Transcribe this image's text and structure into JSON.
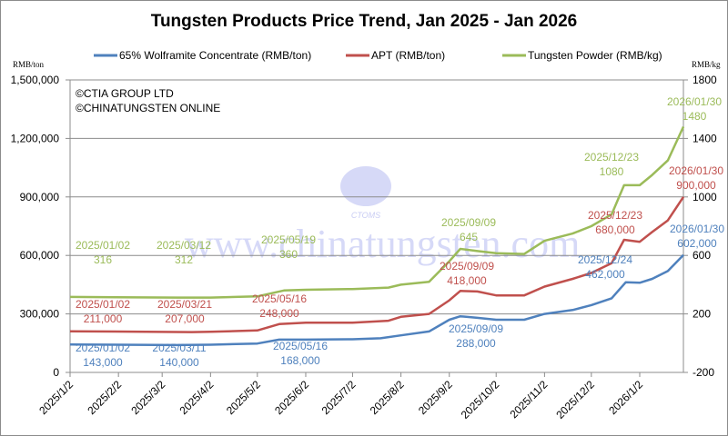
{
  "chart_data": {
    "type": "line",
    "title": "Tungsten Products Price Trend, Jan 2025 - Jan 2026",
    "copyright": [
      "©CTIA GROUP LTD",
      "©CHINATUNGSTEN ONLINE"
    ],
    "watermark": {
      "logo_text": "CTOMS",
      "url": "www.chinatungsten.com"
    },
    "left_axis": {
      "unit": "RMB/ton",
      "range": [
        0,
        1500000
      ],
      "ticks": [
        "0",
        "300,000",
        "600,000",
        "900,000",
        "1,200,000",
        "1,500,000"
      ],
      "tick_values": [
        0,
        300000,
        600000,
        900000,
        1200000,
        1500000
      ]
    },
    "right_axis": {
      "unit": "RMB/kg",
      "range": [
        -200,
        1800
      ],
      "ticks": [
        "-200",
        "200",
        "600",
        "1000",
        "1400",
        "1800"
      ],
      "tick_values": [
        -200,
        200,
        600,
        1000,
        1400,
        1800
      ]
    },
    "x_axis": {
      "range": [
        "2025-01-02",
        "2026-01-30"
      ],
      "ticks": [
        "2025/1/2",
        "2025/2/2",
        "2025/3/2",
        "2025/4/2",
        "2025/5/2",
        "2025/6/2",
        "2025/7/2",
        "2025/8/2",
        "2025/9/2",
        "2025/10/2",
        "2025/11/2",
        "2025/12/2",
        "2026/1/2"
      ]
    },
    "grid": "horizontal",
    "legend_position": "top",
    "series": [
      {
        "name": "65% Wolframite Concentrate (RMB/ton)",
        "axis": "left",
        "color": "#4f81bd",
        "points": [
          [
            "2025-01-02",
            143000
          ],
          [
            "2025-03-11",
            140000
          ],
          [
            "2025-04-02",
            142000
          ],
          [
            "2025-05-02",
            148000
          ],
          [
            "2025-05-16",
            168000
          ],
          [
            "2025-06-02",
            168000
          ],
          [
            "2025-07-02",
            170000
          ],
          [
            "2025-07-20",
            175000
          ],
          [
            "2025-08-02",
            190000
          ],
          [
            "2025-08-20",
            210000
          ],
          [
            "2025-09-02",
            270000
          ],
          [
            "2025-09-09",
            288000
          ],
          [
            "2025-09-20",
            280000
          ],
          [
            "2025-10-02",
            270000
          ],
          [
            "2025-10-20",
            270000
          ],
          [
            "2025-11-02",
            300000
          ],
          [
            "2025-11-20",
            320000
          ],
          [
            "2025-12-02",
            345000
          ],
          [
            "2025-12-15",
            380000
          ],
          [
            "2025-12-24",
            462000
          ],
          [
            "2026-01-02",
            460000
          ],
          [
            "2026-01-10",
            480000
          ],
          [
            "2026-01-20",
            520000
          ],
          [
            "2026-01-30",
            602000
          ]
        ],
        "annotations": [
          [
            "2025/01/02",
            "143,000"
          ],
          [
            "2025/03/11",
            "140,000"
          ],
          [
            "2025/05/16",
            "168,000"
          ],
          [
            "2025/09/09",
            "288,000"
          ],
          [
            "2025/12/24",
            "462,000"
          ],
          [
            "2026/01/30",
            "602,000"
          ]
        ]
      },
      {
        "name": "APT (RMB/ton)",
        "axis": "left",
        "color": "#c0504d",
        "points": [
          [
            "2025-01-02",
            211000
          ],
          [
            "2025-03-21",
            207000
          ],
          [
            "2025-04-02",
            208000
          ],
          [
            "2025-05-02",
            215000
          ],
          [
            "2025-05-16",
            248000
          ],
          [
            "2025-06-02",
            255000
          ],
          [
            "2025-07-02",
            255000
          ],
          [
            "2025-07-25",
            265000
          ],
          [
            "2025-08-02",
            285000
          ],
          [
            "2025-08-20",
            300000
          ],
          [
            "2025-09-02",
            370000
          ],
          [
            "2025-09-09",
            418000
          ],
          [
            "2025-09-20",
            415000
          ],
          [
            "2025-10-02",
            395000
          ],
          [
            "2025-10-20",
            395000
          ],
          [
            "2025-11-02",
            440000
          ],
          [
            "2025-11-20",
            480000
          ],
          [
            "2025-12-02",
            510000
          ],
          [
            "2025-12-15",
            560000
          ],
          [
            "2025-12-23",
            680000
          ],
          [
            "2026-01-02",
            670000
          ],
          [
            "2026-01-10",
            720000
          ],
          [
            "2026-01-20",
            780000
          ],
          [
            "2026-01-30",
            900000
          ]
        ],
        "annotations": [
          [
            "2025/01/02",
            "211,000"
          ],
          [
            "2025/03/21",
            "207,000"
          ],
          [
            "2025/05/16",
            "248,000"
          ],
          [
            "2025/09/09",
            "418,000"
          ],
          [
            "2025/12/23",
            "680,000"
          ],
          [
            "2026/01/30",
            "900,000"
          ]
        ]
      },
      {
        "name": "Tungsten Powder (RMB/kg)",
        "axis": "right",
        "color": "#9bbb59",
        "points": [
          [
            "2025-01-02",
            316
          ],
          [
            "2025-03-12",
            312
          ],
          [
            "2025-04-02",
            312
          ],
          [
            "2025-05-02",
            320
          ],
          [
            "2025-05-19",
            360
          ],
          [
            "2025-06-02",
            365
          ],
          [
            "2025-07-02",
            370
          ],
          [
            "2025-07-25",
            380
          ],
          [
            "2025-08-02",
            400
          ],
          [
            "2025-08-20",
            420
          ],
          [
            "2025-09-02",
            560
          ],
          [
            "2025-09-09",
            645
          ],
          [
            "2025-09-20",
            630
          ],
          [
            "2025-10-02",
            615
          ],
          [
            "2025-10-20",
            610
          ],
          [
            "2025-11-02",
            700
          ],
          [
            "2025-11-20",
            750
          ],
          [
            "2025-12-02",
            800
          ],
          [
            "2025-12-15",
            880
          ],
          [
            "2025-12-23",
            1080
          ],
          [
            "2026-01-02",
            1080
          ],
          [
            "2026-01-10",
            1150
          ],
          [
            "2026-01-20",
            1250
          ],
          [
            "2026-01-30",
            1480
          ]
        ],
        "annotations": [
          [
            "2025/01/02",
            "316"
          ],
          [
            "2025/03/12",
            "312"
          ],
          [
            "2025/05/19",
            "360"
          ],
          [
            "2025/09/09",
            "645"
          ],
          [
            "2025/12/23",
            "1080"
          ],
          [
            "2026/01/30",
            "1480"
          ]
        ]
      }
    ]
  }
}
